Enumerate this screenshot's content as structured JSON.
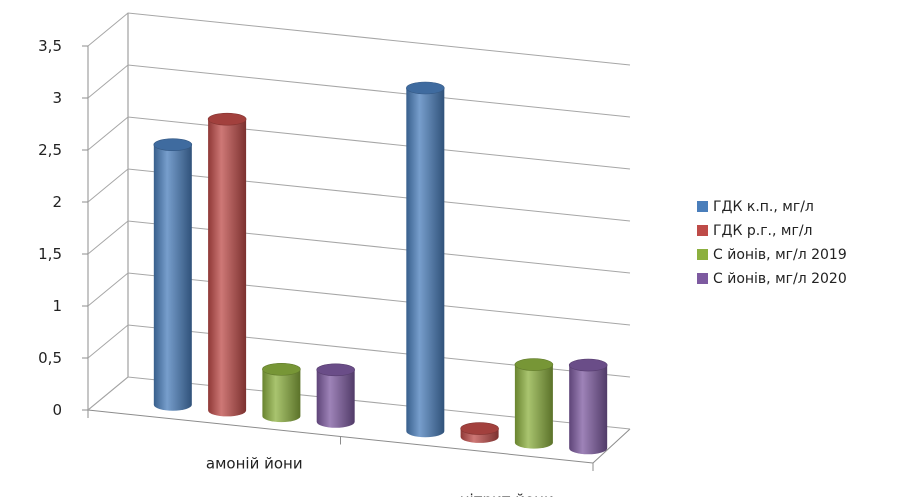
{
  "chart_data": {
    "type": "bar",
    "style": "3d-cylinder",
    "categories": [
      "амоній йони",
      "нітрит йони"
    ],
    "series": [
      {
        "name": "ГДК к.п., мг/л",
        "color": "#4a7ebb",
        "values": [
          2.5,
          3.3
        ]
      },
      {
        "name": "ГДК р.г., мг/л",
        "color": "#be4b48",
        "values": [
          2.8,
          0.08
        ]
      },
      {
        "name": "С йонів, мг/л 2019",
        "color": "#8cb03f",
        "values": [
          0.45,
          0.75
        ]
      },
      {
        "name": "С йонів, мг/л 2020",
        "color": "#7d5aa0",
        "values": [
          0.5,
          0.8
        ]
      }
    ],
    "yticks": [
      "0",
      "0,5",
      "1",
      "1,5",
      "2",
      "2,5",
      "3",
      "3,5"
    ],
    "ylim": [
      0,
      3.5
    ],
    "grid": true,
    "legend": "right",
    "title": "",
    "xlabel": "",
    "ylabel": ""
  }
}
